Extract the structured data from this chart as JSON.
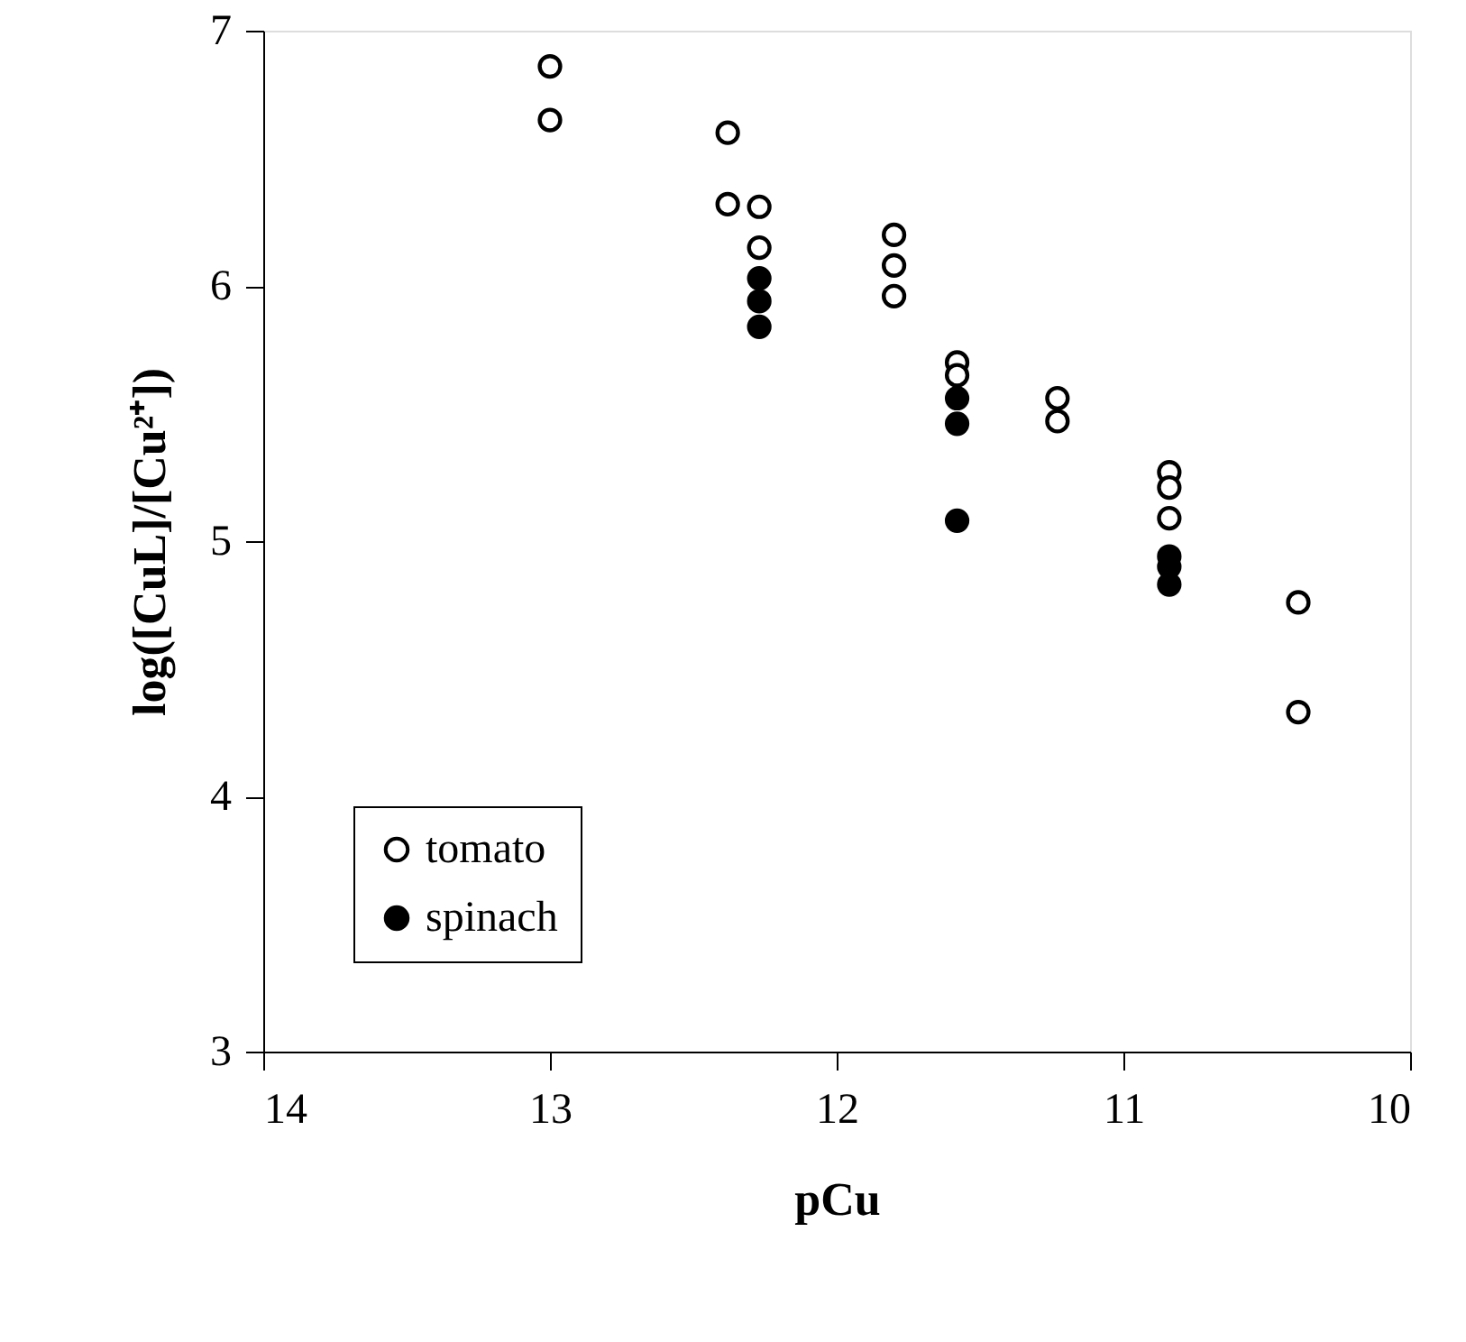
{
  "chart_data": {
    "type": "scatter",
    "xlabel": "pCu",
    "ylabel": "log([CuL]/[Cu²⁺])",
    "xlim": [
      14,
      10
    ],
    "xticks": [
      14,
      13,
      12,
      11,
      10
    ],
    "ylim": [
      3,
      7
    ],
    "yticks": [
      3,
      4,
      5,
      6,
      7
    ],
    "grid": false,
    "legend": "bottom left",
    "marker": "circle",
    "series": [
      {
        "name": "tomato",
        "color": "#ffffff",
        "x": [
          13,
          13,
          12.38,
          12.38,
          12.27,
          12.27,
          11.8,
          11.8,
          11.8,
          11.58,
          11.58,
          11.23,
          11.23,
          10.84,
          10.84,
          10.84,
          10.39,
          10.39
        ],
        "values": [
          6.86,
          6.65,
          6.6,
          6.32,
          6.31,
          6.15,
          6.2,
          6.08,
          5.96,
          5.7,
          5.65,
          5.56,
          5.47,
          5.27,
          5.21,
          5.09,
          4.76,
          4.33
        ]
      },
      {
        "name": "spinach",
        "color": "#000000",
        "x": [
          12.27,
          12.27,
          12.27,
          11.58,
          11.58,
          11.58,
          10.84,
          10.84,
          10.84
        ],
        "values": [
          6.03,
          5.94,
          5.84,
          5.56,
          5.46,
          5.08,
          4.94,
          4.9,
          4.83
        ]
      }
    ]
  }
}
